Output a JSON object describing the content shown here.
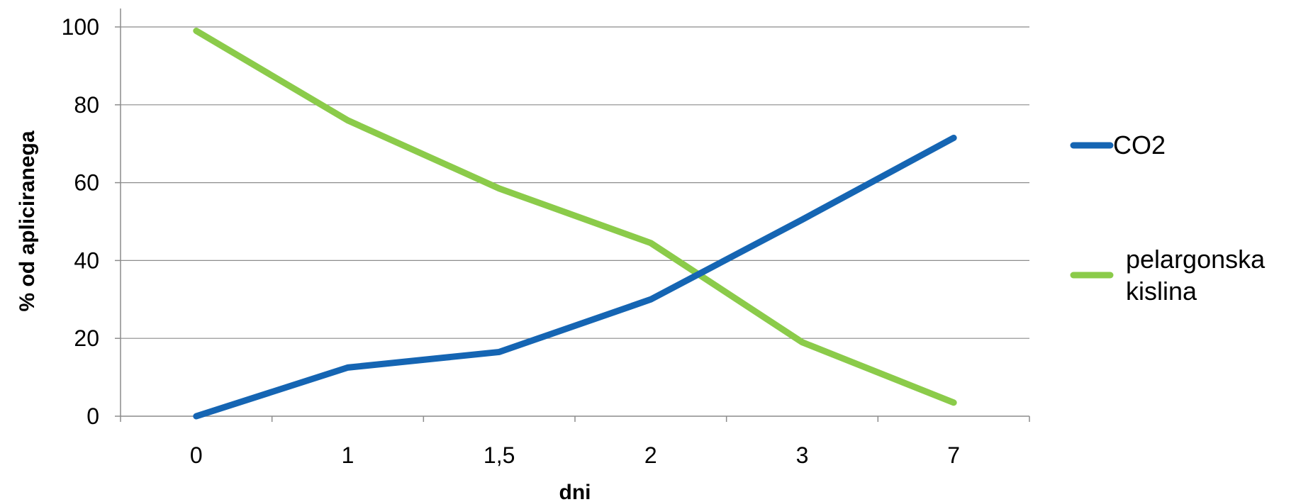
{
  "chart_data": {
    "type": "line",
    "title": "",
    "xlabel": "dni",
    "ylabel": "% od apliciranega",
    "categories": [
      "0",
      "1",
      "1,5",
      "2",
      "3",
      "7"
    ],
    "ylim": [
      0,
      100
    ],
    "yticks": [
      "0",
      "20",
      "40",
      "60",
      "80",
      "100"
    ],
    "grid": "horizontal",
    "legend_position": "right",
    "series": [
      {
        "name": "CO2",
        "color": "#1565B3",
        "values": [
          0,
          12.5,
          16.5,
          30,
          50.5,
          71.5
        ]
      },
      {
        "name": "pelargonska kislina",
        "name_lines": [
          "pelargonska",
          "kislina"
        ],
        "color": "#8BCB4A",
        "values": [
          99,
          76,
          58.5,
          44.5,
          19,
          3.5
        ]
      }
    ]
  }
}
